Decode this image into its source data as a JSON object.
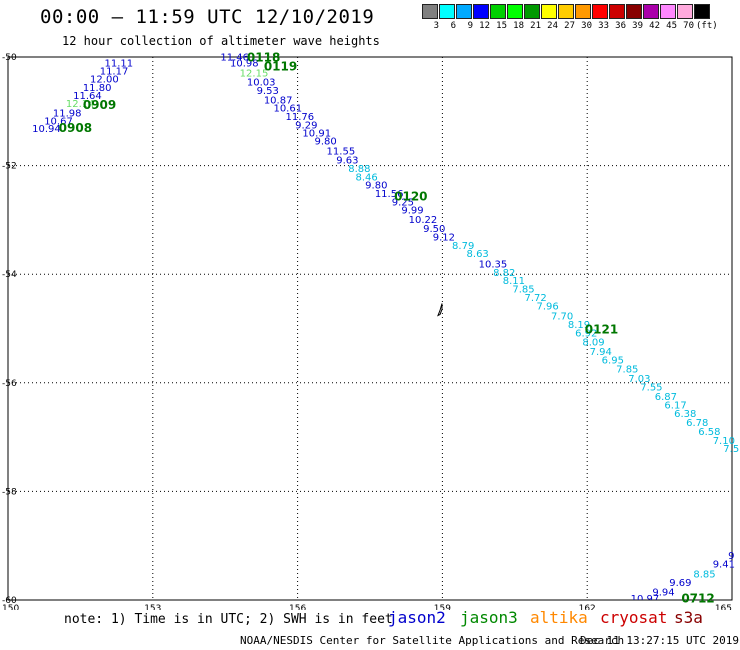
{
  "header": {
    "title": "00:00 – 11:59 UTC 12/10/2019",
    "subtitle": "12 hour collection of altimeter wave heights"
  },
  "legend": {
    "colors": [
      "#808080",
      "#00ffff",
      "#00aaff",
      "#0000ff",
      "#00d000",
      "#00ff00",
      "#009900",
      "#ffff00",
      "#ffcc00",
      "#ff9900",
      "#ff0000",
      "#cc0000",
      "#880000",
      "#aa00aa",
      "#ff88ff",
      "#ffaadd",
      "#000000"
    ],
    "labels": [
      "3",
      "6",
      "9",
      "12",
      "15",
      "18",
      "21",
      "24",
      "27",
      "30",
      "33",
      "36",
      "39",
      "42",
      "45",
      "70",
      "(ft)"
    ]
  },
  "map": {
    "lat_labels": [
      "-50",
      "-52",
      "-54",
      "-56",
      "-58",
      "-60"
    ],
    "lon_labels": [
      "150",
      "153",
      "156",
      "159",
      "162",
      "165"
    ],
    "lat_range": [
      -60,
      -50
    ],
    "lon_range": [
      150,
      165
    ],
    "lat_ticks": [
      -50,
      -52,
      -54,
      -56,
      -58,
      -60
    ],
    "lon_ticks": [
      150,
      153,
      156,
      159,
      162,
      165
    ],
    "grid": true,
    "island_icon": "small-island-outline"
  },
  "tracks": [
    {
      "id": "t0908",
      "label": "0908",
      "points": [
        {
          "v": "10.94",
          "lon": 150.5,
          "lat": -51.31,
          "c": "#0000cc"
        },
        {
          "v": "10.67",
          "lon": 150.75,
          "lat": -51.17,
          "c": "#0000cc"
        },
        {
          "v": "11.98",
          "lon": 150.93,
          "lat": -51.02,
          "c": "#0000cc"
        },
        {
          "v": "12.14",
          "lon": 151.2,
          "lat": -50.85,
          "c": "#66dd66"
        },
        {
          "v": "11.64",
          "lon": 151.35,
          "lat": -50.7,
          "c": "#0000cc"
        },
        {
          "v": "11.80",
          "lon": 151.55,
          "lat": -50.55,
          "c": "#0000cc"
        },
        {
          "v": "12.00",
          "lon": 151.7,
          "lat": -50.4,
          "c": "#0000cc"
        },
        {
          "v": "11.17",
          "lon": 151.9,
          "lat": -50.25,
          "c": "#0000cc"
        },
        {
          "v": "11.11",
          "lon": 152.0,
          "lat": -50.1,
          "c": "#0000cc"
        }
      ]
    },
    {
      "id": "t0118",
      "label": "0118",
      "points": [
        {
          "v": "11.46",
          "lon": 154.4,
          "lat": -49.99,
          "c": "#0000cc"
        },
        {
          "v": "10.98",
          "lon": 154.6,
          "lat": -50.1,
          "c": "#0000cc"
        },
        {
          "v": "12.15",
          "lon": 154.8,
          "lat": -50.29,
          "c": "#66dd66"
        },
        {
          "v": "10.03",
          "lon": 154.95,
          "lat": -50.45,
          "c": "#0000cc"
        },
        {
          "v": "9.53",
          "lon": 155.15,
          "lat": -50.61,
          "c": "#0000cc"
        },
        {
          "v": "10.87",
          "lon": 155.3,
          "lat": -50.78,
          "c": "#0000cc"
        },
        {
          "v": "10.61",
          "lon": 155.5,
          "lat": -50.93,
          "c": "#0000cc"
        },
        {
          "v": "11.76",
          "lon": 155.75,
          "lat": -51.09,
          "c": "#0000cc"
        },
        {
          "v": "9.29",
          "lon": 155.95,
          "lat": -51.24,
          "c": "#0000cc"
        },
        {
          "v": "10.91",
          "lon": 156.1,
          "lat": -51.39,
          "c": "#0000cc"
        },
        {
          "v": "9.80",
          "lon": 156.35,
          "lat": -51.54,
          "c": "#0000cc"
        },
        {
          "v": "11.55",
          "lon": 156.6,
          "lat": -51.72,
          "c": "#0000cc"
        },
        {
          "v": "9.63",
          "lon": 156.8,
          "lat": -51.89,
          "c": "#0000cc"
        },
        {
          "v": "8.88",
          "lon": 157.05,
          "lat": -52.04,
          "c": "#00bbdd"
        },
        {
          "v": "8.46",
          "lon": 157.2,
          "lat": -52.2,
          "c": "#00bbdd"
        },
        {
          "v": "9.80",
          "lon": 157.4,
          "lat": -52.35,
          "c": "#0000cc"
        },
        {
          "v": "11.56",
          "lon": 157.6,
          "lat": -52.5,
          "c": "#0000cc"
        },
        {
          "v": "9.25",
          "lon": 157.95,
          "lat": -52.66,
          "c": "#0000cc"
        },
        {
          "v": "9.99",
          "lon": 158.15,
          "lat": -52.81,
          "c": "#0000cc"
        },
        {
          "v": "10.22",
          "lon": 158.3,
          "lat": -52.98,
          "c": "#0000cc"
        },
        {
          "v": "9.50",
          "lon": 158.6,
          "lat": -53.15,
          "c": "#0000cc"
        },
        {
          "v": "9.12",
          "lon": 158.8,
          "lat": -53.31,
          "c": "#0000cc"
        },
        {
          "v": "8.79",
          "lon": 159.2,
          "lat": -53.46,
          "c": "#00bbdd"
        },
        {
          "v": "8.63",
          "lon": 159.5,
          "lat": -53.61,
          "c": "#00bbdd"
        },
        {
          "v": "10.35",
          "lon": 159.75,
          "lat": -53.8,
          "c": "#0000cc"
        },
        {
          "v": "8.82",
          "lon": 160.05,
          "lat": -53.96,
          "c": "#00bbdd"
        },
        {
          "v": "8.11",
          "lon": 160.25,
          "lat": -54.11,
          "c": "#00bbdd"
        },
        {
          "v": "7.85",
          "lon": 160.45,
          "lat": -54.26,
          "c": "#00bbdd"
        },
        {
          "v": "7.72",
          "lon": 160.7,
          "lat": -54.42,
          "c": "#00bbdd"
        },
        {
          "v": "7.96",
          "lon": 160.95,
          "lat": -54.58,
          "c": "#00bbdd"
        },
        {
          "v": "7.70",
          "lon": 161.25,
          "lat": -54.76,
          "c": "#00bbdd"
        },
        {
          "v": "8.19",
          "lon": 161.6,
          "lat": -54.92,
          "c": "#00bbdd"
        },
        {
          "v": "6.92",
          "lon": 161.75,
          "lat": -55.07,
          "c": "#00bbdd"
        },
        {
          "v": "8.09",
          "lon": 161.9,
          "lat": -55.24,
          "c": "#00bbdd"
        },
        {
          "v": "7.94",
          "lon": 162.05,
          "lat": -55.41,
          "c": "#00bbdd"
        },
        {
          "v": "6.95",
          "lon": 162.3,
          "lat": -55.57,
          "c": "#00bbdd"
        },
        {
          "v": "7.85",
          "lon": 162.6,
          "lat": -55.74,
          "c": "#00bbdd"
        },
        {
          "v": "7.03",
          "lon": 162.85,
          "lat": -55.91,
          "c": "#00bbdd"
        },
        {
          "v": "7.55",
          "lon": 163.1,
          "lat": -56.07,
          "c": "#00bbdd"
        },
        {
          "v": "6.87",
          "lon": 163.4,
          "lat": -56.24,
          "c": "#00bbdd"
        },
        {
          "v": "6.17",
          "lon": 163.6,
          "lat": -56.4,
          "c": "#00bbdd"
        },
        {
          "v": "6.38",
          "lon": 163.8,
          "lat": -56.56,
          "c": "#00bbdd"
        },
        {
          "v": "6.78",
          "lon": 164.05,
          "lat": -56.72,
          "c": "#00bbdd"
        },
        {
          "v": "6.58",
          "lon": 164.3,
          "lat": -56.89,
          "c": "#00bbdd"
        },
        {
          "v": "7.10",
          "lon": 164.6,
          "lat": -57.05,
          "c": "#00bbdd"
        },
        {
          "v": "7.5",
          "lon": 164.82,
          "lat": -57.2,
          "c": "#00bbdd"
        }
      ]
    },
    {
      "id": "t0712",
      "label": "0712",
      "points": [
        {
          "v": "10.97",
          "lon": 162.9,
          "lat": -59.96,
          "c": "#0000cc"
        },
        {
          "v": "9.94",
          "lon": 163.35,
          "lat": -59.84,
          "c": "#0000cc"
        },
        {
          "v": "9.69",
          "lon": 163.7,
          "lat": -59.67,
          "c": "#0000cc"
        },
        {
          "v": "8.85",
          "lon": 164.2,
          "lat": -59.51,
          "c": "#00bbdd"
        },
        {
          "v": "9.41",
          "lon": 164.6,
          "lat": -59.33,
          "c": "#0000cc"
        },
        {
          "v": "9",
          "lon": 164.92,
          "lat": -59.17,
          "c": "#0000cc"
        }
      ]
    }
  ],
  "time_labels": [
    {
      "t": "0908",
      "lon": 151.05,
      "lat": -51.29
    },
    {
      "t": "0909",
      "lon": 151.55,
      "lat": -50.87
    },
    {
      "t": "0118",
      "lon": 154.95,
      "lat": -49.99
    },
    {
      "t": "0119",
      "lon": 155.3,
      "lat": -50.16
    },
    {
      "t": "0120",
      "lon": 158.0,
      "lat": -52.55
    },
    {
      "t": "0121",
      "lon": 161.95,
      "lat": -55.0
    },
    {
      "t": "0712",
      "lon": 163.95,
      "lat": -59.95
    }
  ],
  "time_label_color": "#007700",
  "footer": {
    "note": "note: 1) Time is in UTC; 2) SWH is in feet",
    "satellites": [
      {
        "name": "jason2",
        "color": "#0000cc"
      },
      {
        "name": "jason3",
        "color": "#008800"
      },
      {
        "name": "altika",
        "color": "#ff8800"
      },
      {
        "name": "cryosat",
        "color": "#cc0000"
      },
      {
        "name": "s3a",
        "color": "#880000"
      }
    ],
    "credit": "NOAA/NESDIS Center for Satellite Applications and Research",
    "timestamp": "Dec 11 13:27:15 UTC 2019"
  }
}
